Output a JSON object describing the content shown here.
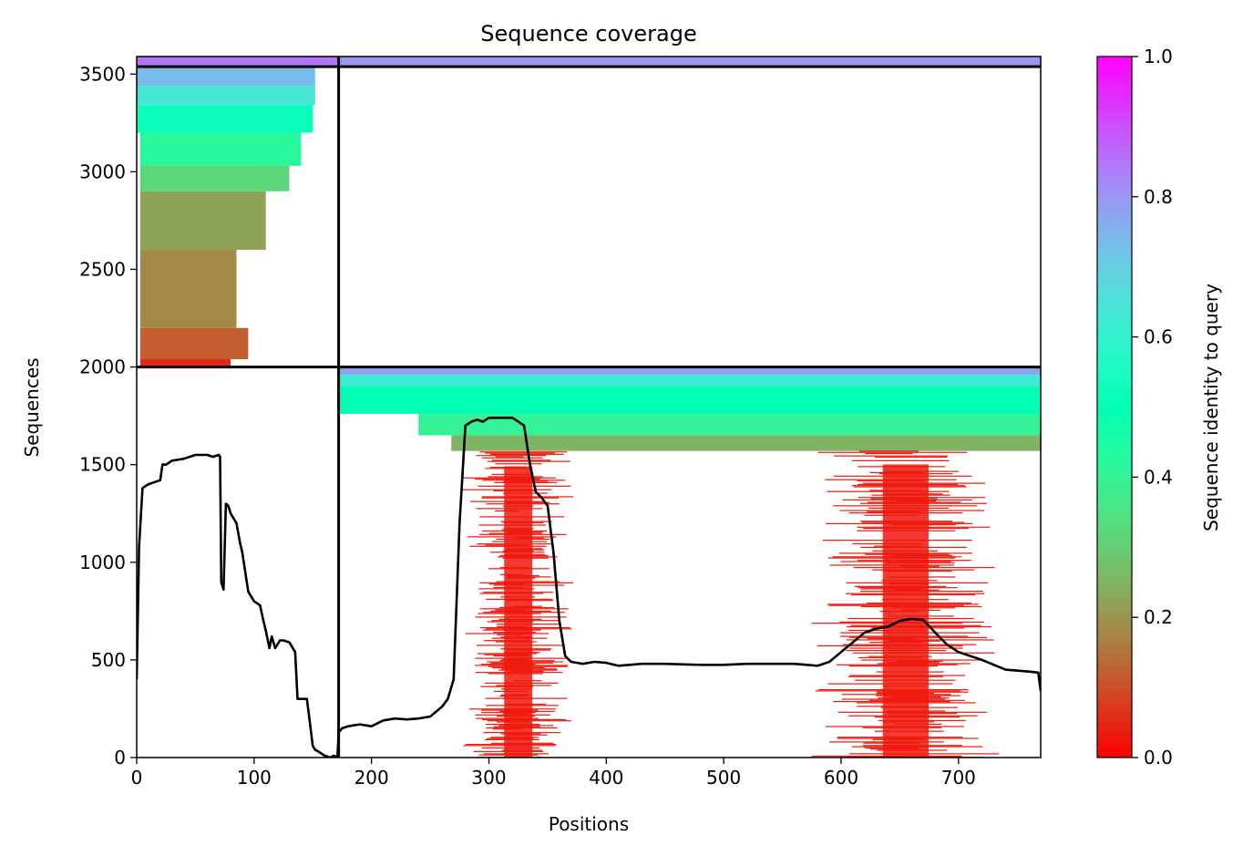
{
  "chart_data": {
    "type": "heatmap",
    "title": "Sequence coverage",
    "xlabel": "Positions",
    "ylabel": "Sequences",
    "xlim": [
      0,
      770
    ],
    "ylim": [
      0,
      3590
    ],
    "x_ticks": [
      0,
      100,
      200,
      300,
      400,
      500,
      600,
      700
    ],
    "y_ticks": [
      0,
      500,
      1000,
      1500,
      2000,
      2500,
      3000,
      3500
    ],
    "grid": false,
    "colorbar": {
      "label": "Sequence identity to query",
      "colormap": "rainbow_r",
      "range": [
        0,
        1
      ],
      "ticks": [
        0.0,
        0.2,
        0.4,
        0.6,
        0.8,
        1.0
      ],
      "tick_labels": [
        "0.0",
        "0.2",
        "0.4",
        "0.6",
        "0.8",
        "1.0"
      ]
    },
    "chain_boundaries": {
      "vertical_x": [
        172
      ],
      "horizontal_y": [
        2000,
        3538
      ]
    },
    "blocks": [
      {
        "name": "chain A paired/unpaired block",
        "x_range": [
          0,
          172
        ],
        "seq_range": [
          2000,
          3590
        ],
        "bands": [
          {
            "seq": [
              3540,
              3590
            ],
            "x": [
              0,
              172
            ],
            "identity": 0.85
          },
          {
            "seq": [
              3440,
              3540
            ],
            "x": [
              0,
              152
            ],
            "identity": 0.74
          },
          {
            "seq": [
              3340,
              3440
            ],
            "x": [
              0,
              152
            ],
            "identity": 0.64
          },
          {
            "seq": [
              3200,
              3340
            ],
            "x": [
              0,
              150
            ],
            "identity": 0.52
          },
          {
            "seq": [
              3030,
              3200
            ],
            "x": [
              3,
              140
            ],
            "identity": 0.42
          },
          {
            "seq": [
              2900,
              3030
            ],
            "x": [
              3,
              130
            ],
            "identity": 0.32
          },
          {
            "seq": [
              2600,
              2900
            ],
            "x": [
              3,
              110
            ],
            "identity": 0.22
          },
          {
            "seq": [
              2200,
              2600
            ],
            "x": [
              3,
              85
            ],
            "identity": 0.18
          },
          {
            "seq": [
              2040,
              2200
            ],
            "x": [
              3,
              95
            ],
            "identity": 0.12
          },
          {
            "seq": [
              2000,
              2040
            ],
            "x": [
              3,
              80
            ],
            "identity": 0.05
          }
        ]
      },
      {
        "name": "chain B top strip",
        "x_range": [
          172,
          770
        ],
        "seq_range": [
          3538,
          3590
        ],
        "bands": [
          {
            "seq": [
              3540,
              3590
            ],
            "x": [
              172,
              770
            ],
            "identity": 0.8
          }
        ]
      },
      {
        "name": "chain B block",
        "x_range": [
          172,
          770
        ],
        "seq_range": [
          0,
          2000
        ],
        "bands": [
          {
            "seq": [
              1960,
              2000
            ],
            "x": [
              172,
              770
            ],
            "identity": 0.78
          },
          {
            "seq": [
              1900,
              1960
            ],
            "x": [
              172,
              770
            ],
            "identity": 0.62
          },
          {
            "seq": [
              1760,
              1900
            ],
            "x": [
              172,
              770
            ],
            "identity": 0.5
          },
          {
            "seq": [
              1650,
              1760
            ],
            "x": [
              240,
              770
            ],
            "identity": 0.4
          },
          {
            "seq": [
              1570,
              1650
            ],
            "x": [
              268,
              770
            ],
            "identity": 0.25
          }
        ],
        "low_identity_regions": [
          {
            "seq": [
              0,
              1570
            ],
            "x": [
              285,
              365
            ],
            "identity": 0.03
          },
          {
            "seq": [
              0,
              1580
            ],
            "x": [
              590,
              720
            ],
            "identity": 0.03
          }
        ]
      }
    ],
    "coverage_line": {
      "name": "coverage",
      "x": [
        0,
        2,
        5,
        10,
        15,
        20,
        22,
        25,
        30,
        40,
        50,
        60,
        65,
        70,
        71,
        72,
        74,
        76,
        78,
        80,
        85,
        88,
        90,
        95,
        100,
        105,
        108,
        110,
        113,
        115,
        118,
        122,
        125,
        130,
        135,
        137,
        140,
        145,
        150,
        152,
        155,
        160,
        165,
        168,
        171,
        172,
        175,
        180,
        190,
        200,
        210,
        220,
        230,
        240,
        250,
        260,
        265,
        270,
        275,
        280,
        285,
        290,
        295,
        300,
        310,
        320,
        330,
        335,
        340,
        345,
        350,
        355,
        360,
        365,
        370,
        380,
        390,
        400,
        410,
        420,
        430,
        450,
        480,
        500,
        520,
        540,
        560,
        580,
        590,
        600,
        610,
        620,
        630,
        640,
        650,
        660,
        670,
        680,
        690,
        700,
        720,
        740,
        760,
        768,
        770
      ],
      "y": [
        400,
        1080,
        1380,
        1400,
        1410,
        1420,
        1500,
        1500,
        1520,
        1530,
        1550,
        1550,
        1540,
        1550,
        1540,
        900,
        860,
        1300,
        1290,
        1250,
        1200,
        1100,
        1050,
        850,
        800,
        780,
        700,
        650,
        560,
        620,
        560,
        600,
        600,
        590,
        540,
        300,
        300,
        300,
        60,
        40,
        30,
        10,
        0,
        10,
        0,
        130,
        150,
        160,
        170,
        160,
        190,
        200,
        195,
        200,
        210,
        260,
        300,
        400,
        1200,
        1700,
        1720,
        1730,
        1720,
        1740,
        1740,
        1740,
        1700,
        1500,
        1360,
        1330,
        1290,
        1050,
        700,
        520,
        490,
        480,
        490,
        485,
        470,
        475,
        480,
        480,
        475,
        475,
        480,
        480,
        480,
        470,
        490,
        540,
        590,
        640,
        660,
        670,
        700,
        710,
        705,
        640,
        580,
        540,
        500,
        450,
        440,
        435,
        340
      ]
    }
  }
}
